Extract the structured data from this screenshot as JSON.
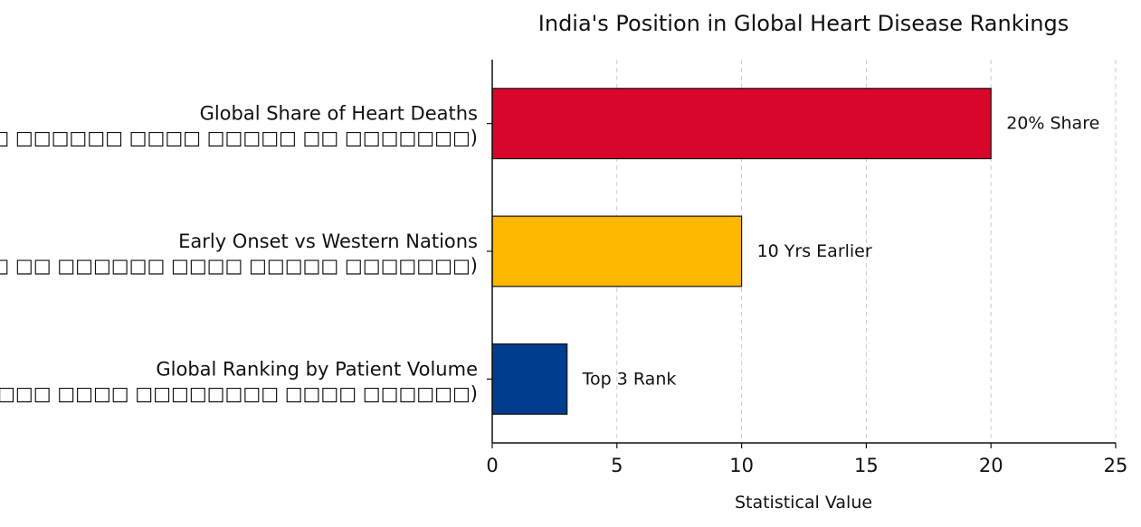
{
  "chart_data": {
    "type": "bar",
    "orientation": "horizontal",
    "title": "India's Position in Global Heart Disease Rankings",
    "xlabel": "Statistical Value",
    "ylabel": "",
    "xlim": [
      0,
      25
    ],
    "xticks": [
      0,
      5,
      10,
      15,
      20,
      25
    ],
    "grid": "x-dashed",
    "categories": [
      {
        "line1": "Global Share of Heart Deaths",
        "line2": "(□□□□□□□□ □□□□□□ □□□□ □□□□□ □□ □□□□□□□)"
      },
      {
        "line1": "Early Onset vs Western Nations",
        "line2": "(□□□□□□□□ □□□□□□ □□ □□□□□□ □□□□ □□□□□ □□□□□□□)"
      },
      {
        "line1": "Global Ranking by Patient Volume",
        "line2": "(□□□□□□□ □□ □□□□□□□□ □□□□ □□□□□□□□ □□□□ □□□□□□)"
      }
    ],
    "values": [
      20,
      10,
      3
    ],
    "data_labels": [
      "20% Share",
      "10 Yrs Earlier",
      "Top 3 Rank"
    ],
    "colors": [
      "#d9062b",
      "#ffb800",
      "#003d8f"
    ]
  }
}
